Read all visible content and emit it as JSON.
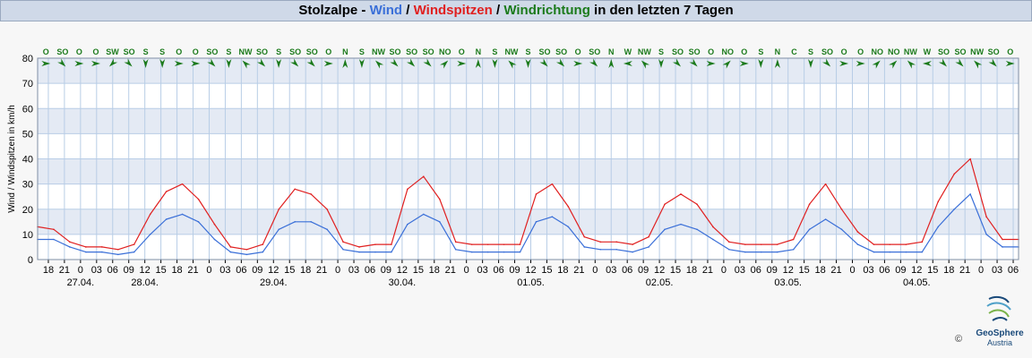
{
  "title": {
    "station": "Stolzalpe",
    "sep1": " - ",
    "wind": "Wind",
    "sep2": " / ",
    "gust": "Windspitzen",
    "sep3": " / ",
    "direction": "Windrichtung",
    "tail": " in den letzten 7 Tagen"
  },
  "colors": {
    "wind": "#3a6fd8",
    "gust": "#e02020",
    "direction": "#1b7a1b",
    "band": "#e4eaf4",
    "grid": "#b8cde6"
  },
  "logo": {
    "name": "GeoSphere",
    "sub": "Austria",
    "copyright": "©"
  },
  "chart_data": {
    "type": "line",
    "ylabel": "Wind / Windspitzen in km/h",
    "ylim": [
      0,
      80
    ],
    "yticks": [
      0,
      10,
      20,
      30,
      40,
      50,
      60,
      70,
      80
    ],
    "xlim_hours": [
      0,
      183
    ],
    "x_unit": "hours since 27.04. 16:00",
    "hour_ticks": [
      "18",
      "21",
      "0",
      "03",
      "06",
      "09",
      "12",
      "15",
      "18",
      "21",
      "0",
      "03",
      "06",
      "09",
      "12",
      "15",
      "18",
      "21",
      "0",
      "03",
      "06",
      "09",
      "12",
      "15",
      "18",
      "21",
      "0",
      "03",
      "06",
      "09",
      "12",
      "15",
      "18",
      "21",
      "0",
      "03",
      "06",
      "09",
      "12",
      "15",
      "18",
      "21",
      "0",
      "03",
      "06",
      "09",
      "12",
      "15",
      "18",
      "21",
      "0",
      "03",
      "06",
      "09",
      "12",
      "15",
      "18",
      "21",
      "0",
      "03",
      "06"
    ],
    "date_labels": [
      "27.04.",
      "28.04.",
      "29.04.",
      "30.04.",
      "01.05.",
      "02.05.",
      "03.05.",
      "04.05."
    ],
    "direction_labels": [
      "O",
      "SO",
      "O",
      "O",
      "SW",
      "SO",
      "S",
      "S",
      "O",
      "O",
      "SO",
      "S",
      "NW",
      "SO",
      "S",
      "SO",
      "SO",
      "O",
      "N",
      "S",
      "NW",
      "SO",
      "SO",
      "SO",
      "NO",
      "O",
      "N",
      "S",
      "NW",
      "S",
      "SO",
      "SO",
      "O",
      "SO",
      "N",
      "W",
      "NW",
      "S",
      "SO",
      "SO",
      "O",
      "NO",
      "O",
      "S",
      "N",
      "C",
      "S",
      "SO",
      "O",
      "O",
      "NO",
      "NO",
      "NW",
      "W",
      "SO",
      "SO",
      "NW",
      "SO",
      "O"
    ],
    "series": [
      {
        "name": "Wind",
        "x": [
          0,
          3,
          6,
          9,
          12,
          15,
          18,
          21,
          24,
          27,
          30,
          33,
          36,
          39,
          42,
          45,
          48,
          51,
          54,
          57,
          60,
          63,
          66,
          69,
          72,
          75,
          78,
          81,
          84,
          87,
          90,
          93,
          96,
          99,
          102,
          105,
          108,
          111,
          114,
          117,
          120,
          123,
          126,
          129,
          132,
          135,
          138,
          141,
          144,
          147,
          150,
          153,
          156,
          159,
          162,
          165,
          168,
          171,
          174,
          177,
          180,
          183
        ],
        "values": [
          8,
          8,
          5,
          3,
          3,
          2,
          3,
          10,
          16,
          18,
          15,
          8,
          3,
          2,
          3,
          12,
          15,
          15,
          12,
          4,
          3,
          3,
          3,
          14,
          18,
          15,
          4,
          3,
          3,
          3,
          3,
          15,
          17,
          13,
          5,
          4,
          4,
          3,
          5,
          12,
          14,
          12,
          8,
          4,
          3,
          3,
          3,
          4,
          12,
          16,
          12,
          6,
          3,
          3,
          3,
          3,
          13,
          20,
          26,
          10,
          5,
          5
        ]
      },
      {
        "name": "Windspitzen",
        "x": [
          0,
          3,
          6,
          9,
          12,
          15,
          18,
          21,
          24,
          27,
          30,
          33,
          36,
          39,
          42,
          45,
          48,
          51,
          54,
          57,
          60,
          63,
          66,
          69,
          72,
          75,
          78,
          81,
          84,
          87,
          90,
          93,
          96,
          99,
          102,
          105,
          108,
          111,
          114,
          117,
          120,
          123,
          126,
          129,
          132,
          135,
          138,
          141,
          144,
          147,
          150,
          153,
          156,
          159,
          162,
          165,
          168,
          171,
          174,
          177,
          180,
          183
        ],
        "values": [
          13,
          12,
          7,
          5,
          5,
          4,
          6,
          18,
          27,
          30,
          24,
          14,
          5,
          4,
          6,
          20,
          28,
          26,
          20,
          7,
          5,
          6,
          6,
          28,
          33,
          24,
          7,
          6,
          6,
          6,
          6,
          26,
          30,
          21,
          9,
          7,
          7,
          6,
          9,
          22,
          26,
          22,
          13,
          7,
          6,
          6,
          6,
          8,
          22,
          30,
          20,
          11,
          6,
          6,
          6,
          7,
          23,
          34,
          40,
          17,
          8,
          8
        ]
      }
    ]
  }
}
